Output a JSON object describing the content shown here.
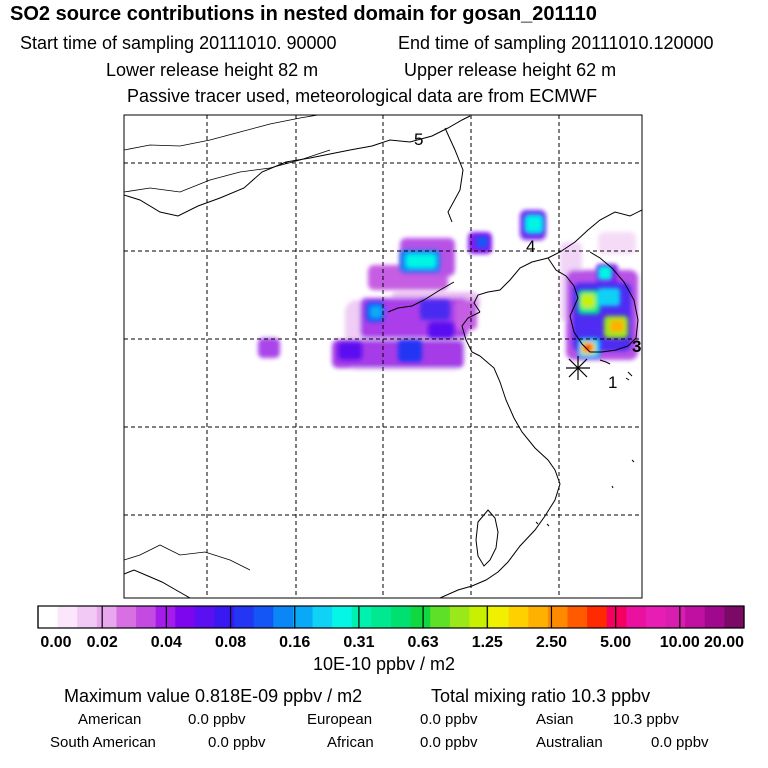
{
  "header": {
    "title": "SO2 source contributions in nested domain for gosan_201110",
    "start_time": "Start time of sampling 20111010. 90000",
    "end_time": "End time of sampling 20111010.120000",
    "lower_height": "Lower release height   82 m",
    "upper_height": "Upper release height   62 m",
    "note": "Passive tracer used, meteorological data are from ECMWF"
  },
  "map": {
    "markers": [
      "1",
      "3",
      "4",
      "5"
    ]
  },
  "colorbar": {
    "ticks": [
      "0.00",
      "0.02",
      "0.04",
      "0.08",
      "0.16",
      "0.31",
      "0.63",
      "1.25",
      "2.50",
      "5.00",
      "10.00",
      "20.00"
    ],
    "unit": "10E-10 ppbv / m2",
    "colors": [
      "#ffffff",
      "#fbe6fb",
      "#f2c8f4",
      "#e9a8ee",
      "#d86fe2",
      "#c34be2",
      "#a31cea",
      "#7d06ef",
      "#5a10f0",
      "#3a18f2",
      "#2236f4",
      "#1356f5",
      "#0a86f6",
      "#08aaf8",
      "#0fd2f6",
      "#05f5e6",
      "#00f0b0",
      "#00e890",
      "#00e070",
      "#10d840",
      "#5ee028",
      "#9ae81a",
      "#c8f000",
      "#f0f000",
      "#ffd000",
      "#ffb000",
      "#ff8a00",
      "#ff5a00",
      "#ff2a00",
      "#f40060",
      "#ea10a0",
      "#e81eb4",
      "#d81eae",
      "#c010a2",
      "#a0088e",
      "#7a0a66"
    ]
  },
  "footer": {
    "max_value_label": "Maximum value  0.818E-09 ppbv / m2",
    "total_mixing": "Total mixing ratio       10.3 ppbv",
    "regions": [
      {
        "name": "American",
        "value": "0.0 ppbv"
      },
      {
        "name": "European",
        "value": "0.0 ppbv"
      },
      {
        "name": "Asian",
        "value": "10.3 ppbv"
      },
      {
        "name": "South American",
        "value": "0.0 ppbv"
      },
      {
        "name": "African",
        "value": "0.0 ppbv"
      },
      {
        "name": "Australian",
        "value": "0.0 ppbv"
      }
    ]
  }
}
